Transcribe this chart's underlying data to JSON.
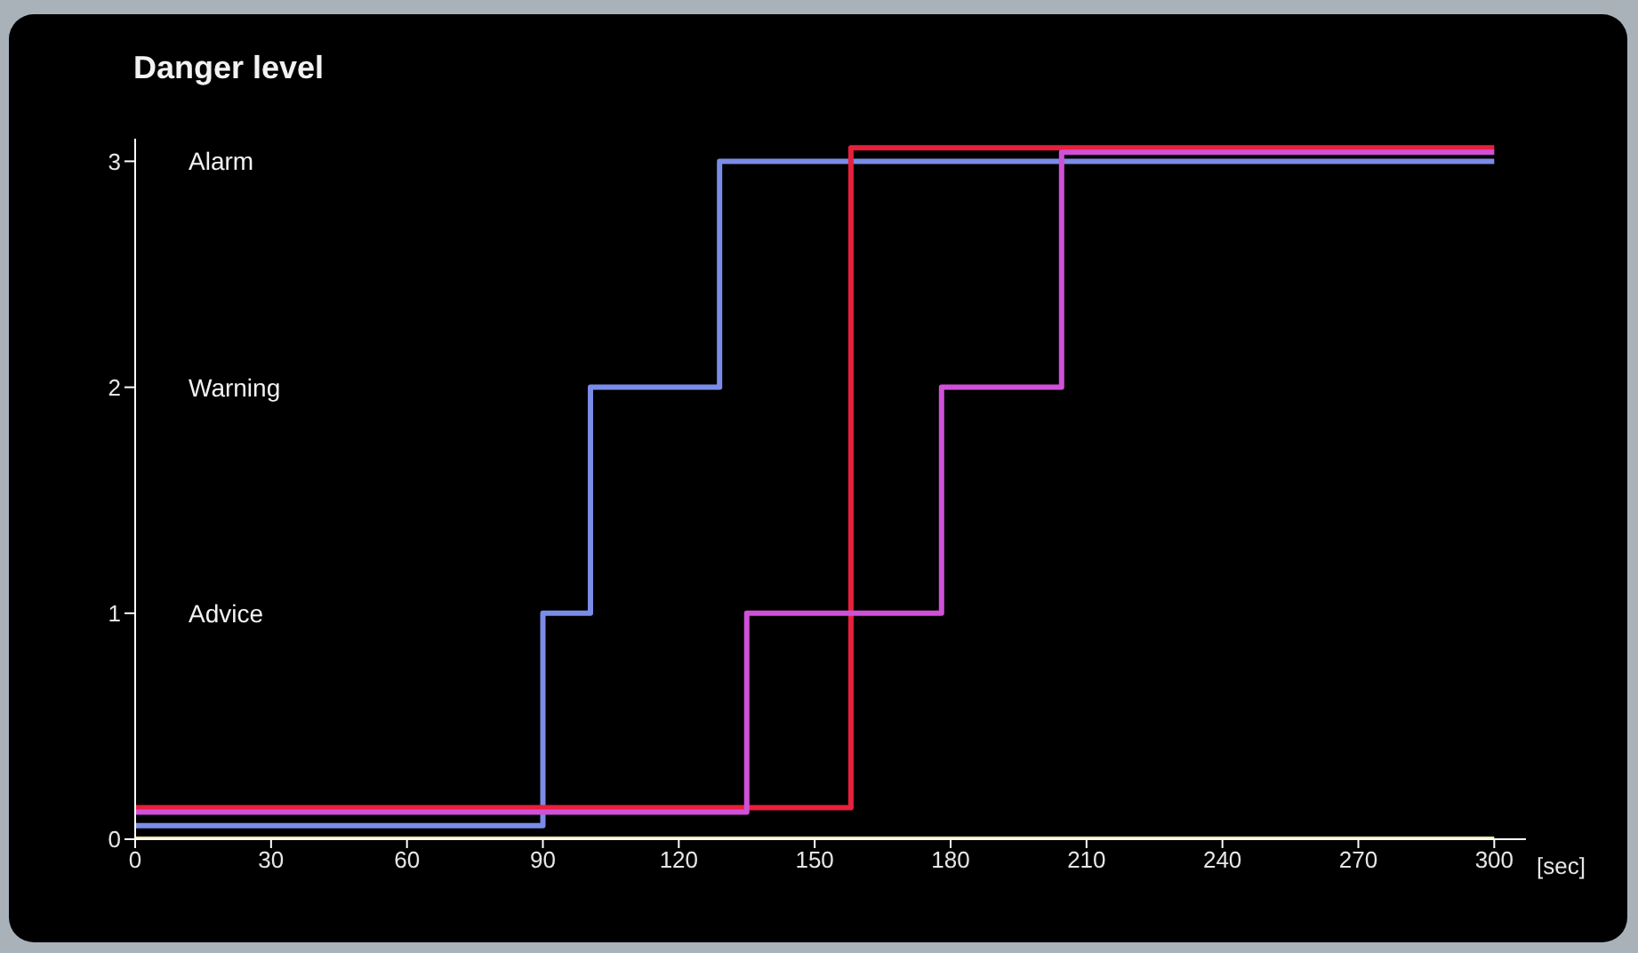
{
  "chart_data": {
    "type": "step",
    "title": "Danger level",
    "xlabel": "[sec]",
    "xlim": [
      0,
      307
    ],
    "xticks": [
      0,
      30,
      60,
      90,
      120,
      150,
      180,
      210,
      240,
      270,
      300
    ],
    "ylim": [
      0,
      3.1
    ],
    "yticks": [
      0,
      1,
      2,
      3
    ],
    "grid": false,
    "marker": "none",
    "line_style": "solid",
    "annotations": [
      "Alarm",
      "Warning",
      "Advice"
    ],
    "series": [
      {
        "color": "#f0e6a0",
        "x": [
          0,
          300
        ],
        "values": [
          0,
          0
        ]
      },
      {
        "color": "#7b8ce8",
        "x": [
          0,
          90,
          100.5,
          129,
          300
        ],
        "values": [
          0.06,
          1,
          2,
          3,
          3
        ]
      },
      {
        "color": "#e8203c",
        "x": [
          0,
          158,
          300
        ],
        "values": [
          0.14,
          3.06,
          3.06
        ]
      },
      {
        "color": "#d050d8",
        "x": [
          0,
          135,
          178,
          204.5,
          300
        ],
        "values": [
          0.12,
          1,
          2,
          3.04,
          3.04
        ]
      }
    ]
  }
}
